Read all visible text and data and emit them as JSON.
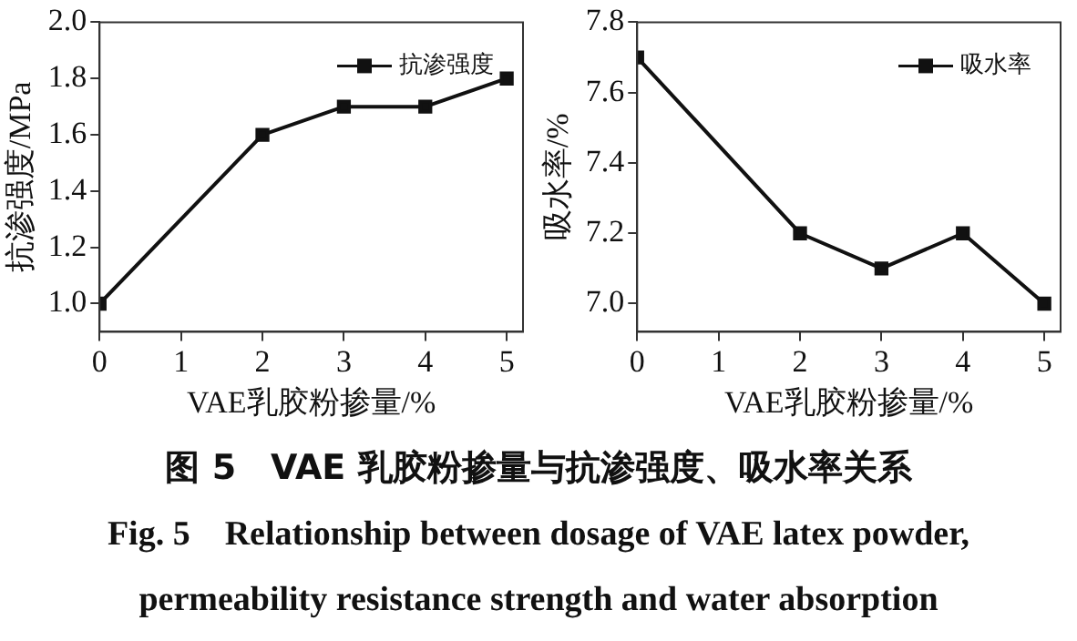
{
  "chart_data": [
    {
      "type": "line",
      "xlabel": "VAE乳胶粉掺量/%",
      "ylabel": "抗渗强度/MPa",
      "x": [
        0,
        2,
        3,
        4,
        5
      ],
      "series": [
        {
          "name": "抗渗强度",
          "color": "#111111",
          "values": [
            1.0,
            1.6,
            1.7,
            1.7,
            1.8
          ]
        }
      ],
      "xlim": [
        0,
        5.2
      ],
      "xticks": [
        0,
        1,
        2,
        3,
        4,
        5
      ],
      "ylim": [
        0.9,
        2.0
      ],
      "yticks": [
        {
          "value": 1.0,
          "label": "1.0"
        },
        1.2,
        1.4,
        1.6,
        1.8,
        {
          "value": 2.0,
          "label": "2.0"
        }
      ],
      "grid": false,
      "legend": "top right",
      "marker": "square",
      "line_style": "solid",
      "annotations": [
        "图 5　VAE 乳胶粉掺量与抗渗强度、吸水率关系",
        "Fig. 5　Relationship between dosage of VAE latex powder,",
        "permeability resistance strength and water absorption"
      ]
    },
    {
      "type": "line",
      "xlabel": "VAE乳胶粉掺量/%",
      "ylabel": "吸水率/%",
      "x": [
        0,
        2,
        3,
        4,
        5
      ],
      "series": [
        {
          "name": "吸水率",
          "color": "#111111",
          "values": [
            7.7,
            7.2,
            7.1,
            7.2,
            7.0
          ]
        }
      ],
      "xlim": [
        0,
        5.2
      ],
      "xticks": [
        0,
        1,
        2,
        3,
        4,
        5
      ],
      "ylim": [
        6.92,
        7.8
      ],
      "yticks": [
        {
          "value": 7.0,
          "label": "7.0"
        },
        7.2,
        7.4,
        7.6,
        7.8
      ],
      "grid": false,
      "legend": "top right",
      "marker": "square",
      "line_style": "solid"
    }
  ]
}
